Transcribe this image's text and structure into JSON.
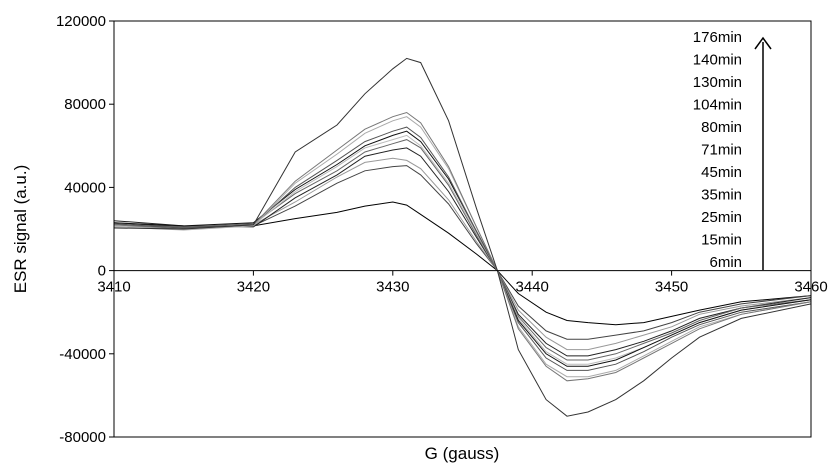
{
  "chart_data": {
    "type": "line",
    "title": "",
    "xlabel": "G (gauss)",
    "ylabel": "ESR signal (a.u.)",
    "xlim": [
      3410,
      3460
    ],
    "ylim": [
      -80000,
      120000
    ],
    "x_ticks": [
      3410,
      3420,
      3430,
      3440,
      3450,
      3460
    ],
    "y_ticks": [
      -80000,
      -40000,
      0,
      40000,
      80000,
      120000
    ],
    "x_tick_labels": [
      "3410",
      "3420",
      "3430",
      "3440",
      "3450",
      "3460"
    ],
    "y_tick_labels": [
      "-80000",
      "-40000",
      "0",
      "40000",
      "80000",
      "120000"
    ],
    "grid": false,
    "legend_position": "top-right",
    "legend_labels": [
      "176min",
      "140min",
      "130min",
      "104min",
      "80min",
      "71min",
      "45min",
      "35min",
      "25min",
      "15min",
      "6min"
    ],
    "arrow": "up",
    "x": [
      3410,
      3415,
      3420,
      3423,
      3426,
      3428,
      3430,
      3431,
      3432,
      3434,
      3436,
      3437.5,
      3439,
      3441,
      3442.5,
      3444,
      3446,
      3448,
      3450,
      3452,
      3455,
      3460
    ],
    "series": [
      {
        "time": "6min",
        "color": "#000000",
        "values": [
          22000,
          20500,
          21500,
          25000,
          28000,
          31000,
          33000,
          31500,
          27000,
          18000,
          8000,
          0,
          -11000,
          -20000,
          -24000,
          -25000,
          -26000,
          -25000,
          -22000,
          -19000,
          -15000,
          -12000
        ]
      },
      {
        "time": "15min",
        "color": "#444444",
        "values": [
          23000,
          21000,
          21500,
          31000,
          42000,
          48000,
          50000,
          50500,
          46000,
          32000,
          13000,
          0,
          -17000,
          -29000,
          -33000,
          -33000,
          -31000,
          -29000,
          -25000,
          -20000,
          -16000,
          -12000
        ]
      },
      {
        "time": "25min",
        "color": "#999999",
        "values": [
          21000,
          20000,
          22000,
          33000,
          45000,
          52000,
          54000,
          53000,
          49000,
          34000,
          14000,
          0,
          -19000,
          -32000,
          -38000,
          -38000,
          -35000,
          -31000,
          -27000,
          -21000,
          -17000,
          -13000
        ]
      },
      {
        "time": "35min",
        "color": "#222222",
        "values": [
          24000,
          21500,
          21000,
          35000,
          46000,
          55000,
          58000,
          59000,
          55000,
          38000,
          16000,
          0,
          -21000,
          -35000,
          -41000,
          -41000,
          -38000,
          -34000,
          -29000,
          -23000,
          -18000,
          -13000
        ]
      },
      {
        "time": "45min",
        "color": "#666666",
        "values": [
          22000,
          21000,
          22500,
          37000,
          48000,
          57000,
          61000,
          63000,
          59000,
          41000,
          17000,
          0,
          -22000,
          -37000,
          -43000,
          -43000,
          -40000,
          -35000,
          -30000,
          -24000,
          -18000,
          -14000
        ]
      },
      {
        "time": "71min",
        "color": "#bbbbbb",
        "values": [
          21500,
          20000,
          22000,
          38000,
          50000,
          59000,
          63000,
          65000,
          60000,
          42000,
          18000,
          0,
          -23000,
          -39000,
          -45000,
          -45000,
          -42000,
          -37000,
          -31000,
          -25000,
          -19000,
          -14000
        ]
      },
      {
        "time": "80min",
        "color": "#111111",
        "values": [
          23000,
          21500,
          23000,
          39000,
          51000,
          60000,
          65000,
          67000,
          62000,
          44000,
          19000,
          0,
          -24000,
          -40000,
          -46000,
          -46000,
          -43000,
          -37000,
          -31000,
          -25000,
          -19000,
          -14000
        ]
      },
      {
        "time": "104min",
        "color": "#555555",
        "values": [
          22500,
          20500,
          22000,
          40000,
          53000,
          62000,
          67000,
          69000,
          64000,
          45000,
          19000,
          0,
          -25000,
          -42000,
          -48000,
          -48000,
          -45000,
          -39000,
          -32000,
          -26000,
          -20000,
          -15000
        ]
      },
      {
        "time": "130min",
        "color": "#aaaaaa",
        "values": [
          21000,
          19500,
          21500,
          42000,
          56000,
          66000,
          72000,
          74000,
          69000,
          49000,
          21000,
          0,
          -27000,
          -45000,
          -51000,
          -51000,
          -48000,
          -41000,
          -34000,
          -27000,
          -21000,
          -15000
        ]
      },
      {
        "time": "140min",
        "color": "#777777",
        "values": [
          22000,
          20000,
          22000,
          43000,
          58000,
          68000,
          74000,
          76000,
          71000,
          50000,
          21000,
          0,
          -28000,
          -46000,
          -53000,
          -52000,
          -49000,
          -42000,
          -35000,
          -28000,
          -21000,
          -15000
        ]
      },
      {
        "time": "176min",
        "color": "#333333",
        "values": [
          20500,
          20000,
          22000,
          57000,
          70000,
          85000,
          97000,
          102000,
          100000,
          72000,
          30000,
          0,
          -38000,
          -62000,
          -70000,
          -68000,
          -62000,
          -53000,
          -42000,
          -32000,
          -23000,
          -16000
        ]
      }
    ]
  }
}
